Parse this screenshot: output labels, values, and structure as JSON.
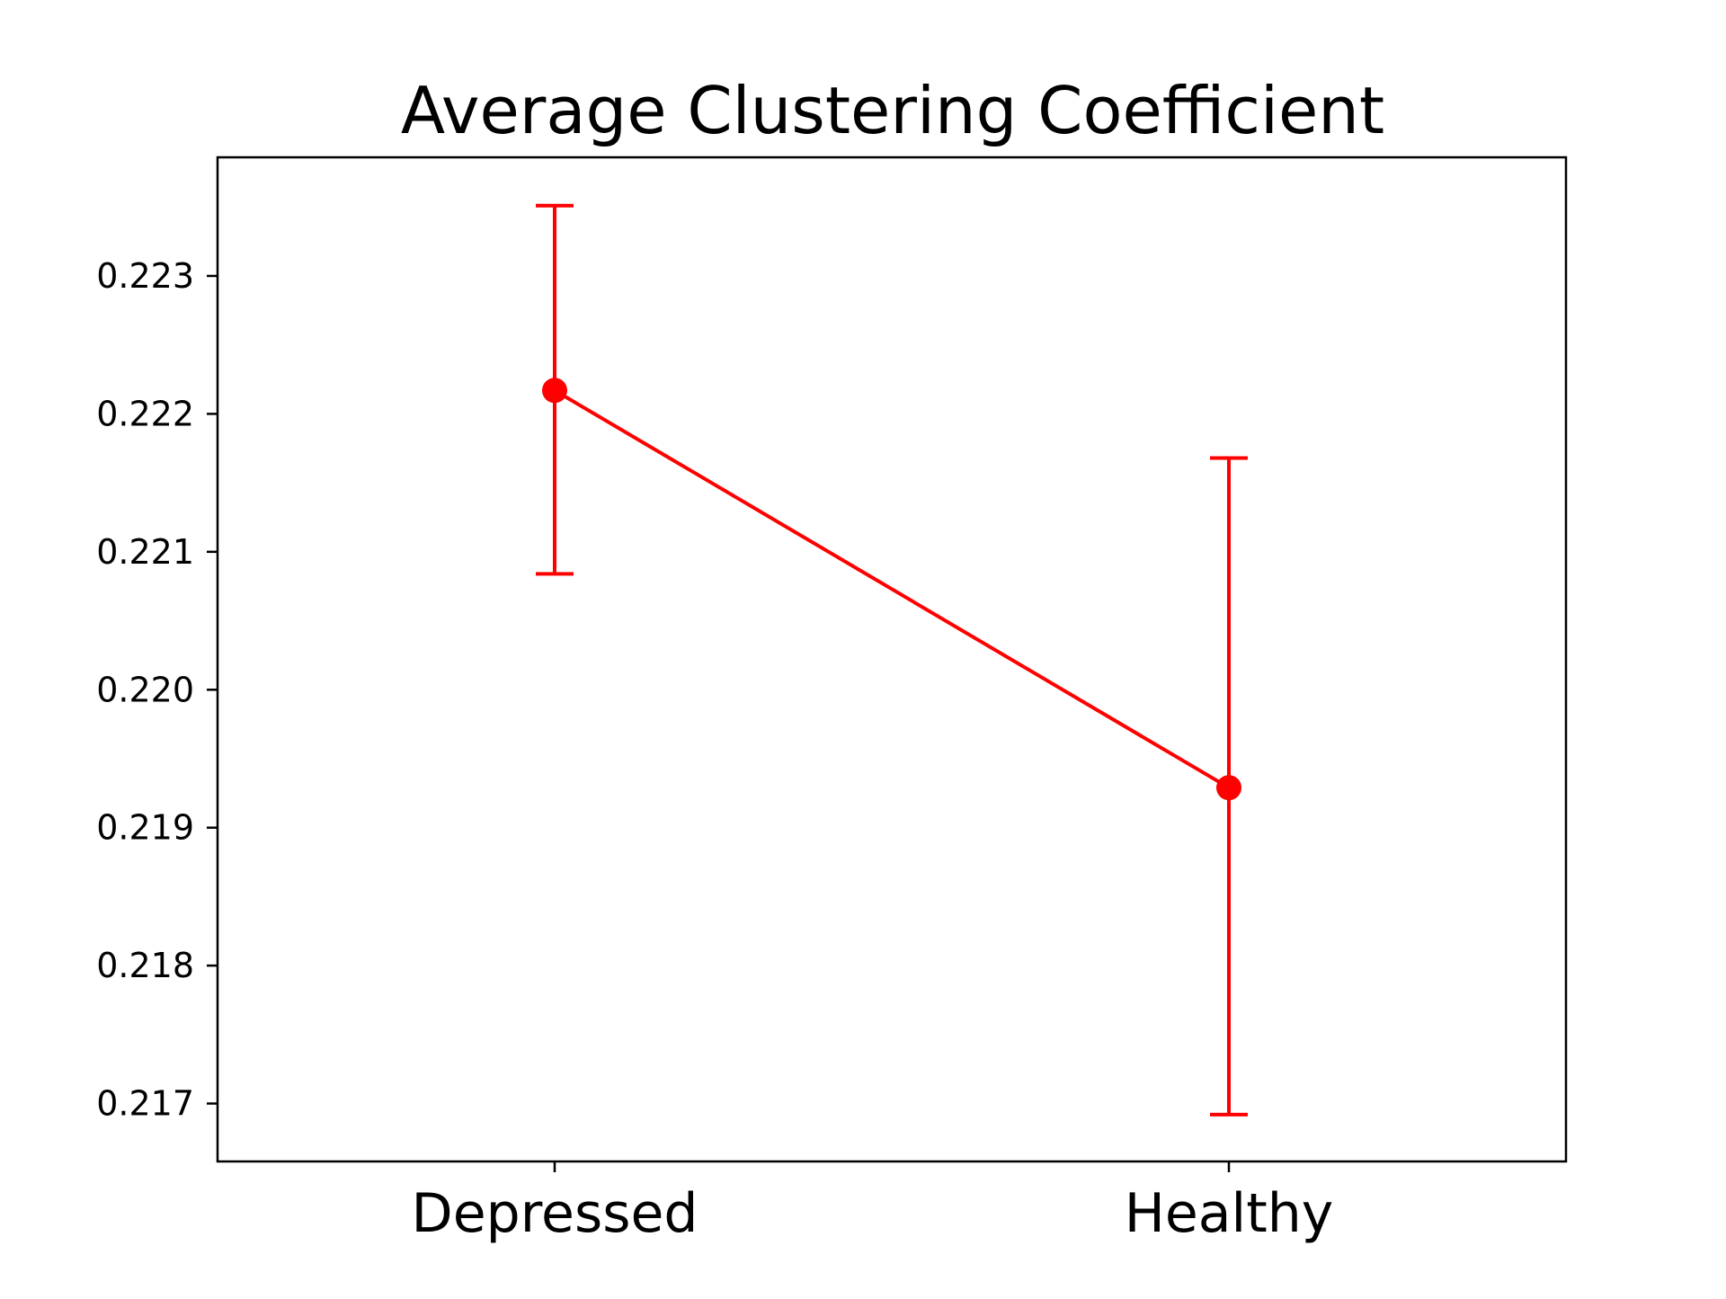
{
  "chart_data": {
    "type": "line",
    "title": "Average Clustering Coefficient",
    "xlabel": "",
    "ylabel": "",
    "categories": [
      "Depressed",
      "Healthy"
    ],
    "series": [
      {
        "values": [
          0.22217,
          0.21929
        ],
        "error_low": [
          0.22084,
          0.21692
        ],
        "error_high": [
          0.22351,
          0.22168
        ],
        "color": "#ff0000"
      }
    ],
    "yticks": [
      0.217,
      0.218,
      0.219,
      0.22,
      0.221,
      0.222,
      0.223
    ],
    "ytick_labels": [
      "0.217",
      "0.218",
      "0.219",
      "0.220",
      "0.221",
      "0.222",
      "0.223"
    ],
    "ylim": [
      0.21658,
      0.22386
    ],
    "grid": false,
    "legend": "none"
  }
}
